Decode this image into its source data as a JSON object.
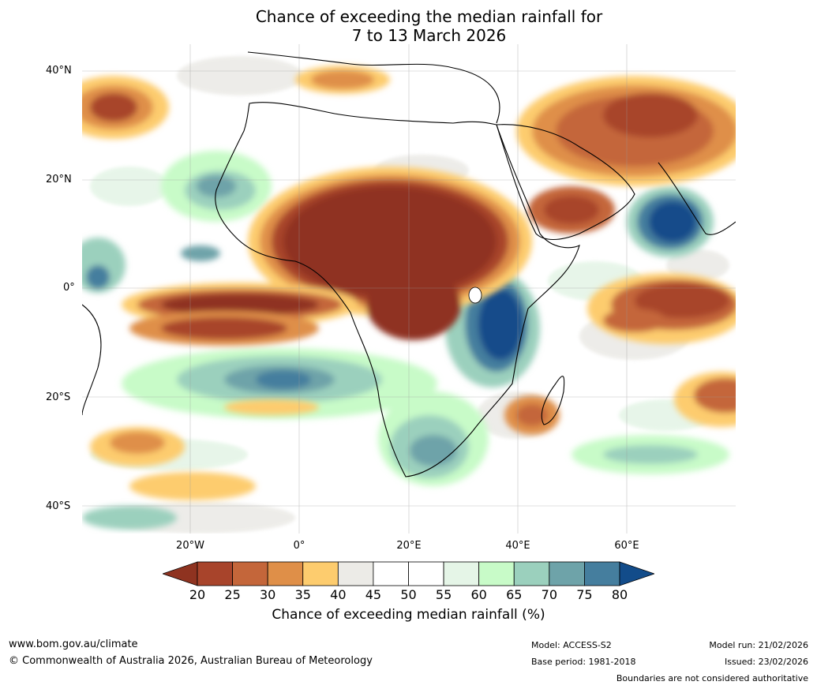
{
  "header": {
    "title_line1": "Chance of exceeding the median rainfall for",
    "title_line2": "7 to 13 March 2026"
  },
  "map": {
    "region": "Africa and surrounding oceans",
    "lat_labels": [
      "40°N",
      "20°N",
      "0°",
      "20°S",
      "40°S"
    ],
    "lon_labels": [
      "20°W",
      "0°",
      "20°E",
      "40°E",
      "60°E"
    ]
  },
  "legend": {
    "ticks": [
      "20",
      "25",
      "30",
      "35",
      "40",
      "45",
      "50",
      "55",
      "60",
      "65",
      "70",
      "75",
      "80"
    ],
    "colors": [
      "#8f3320",
      "#a8442b",
      "#c4663a",
      "#df8f48",
      "#fdcc6e",
      "#ecebe7",
      "#ffffff",
      "#ffffff",
      "#e5f5e7",
      "#c8fbc8",
      "#9bd0bd",
      "#6ea3a9",
      "#457e9e",
      "#124c8a"
    ],
    "title": "Chance of exceeding median rainfall (%)"
  },
  "footer": {
    "website": "www.bom.gov.au/climate",
    "copyright": "© Commonwealth of Australia 2026, Australian Bureau of Meteorology",
    "model": "Model: ACCESS-S2",
    "base_period": "Base period: 1981-2018",
    "model_run": "Model run: 21/02/2026",
    "issued": "Issued: 23/02/2026",
    "disclaimer": "Boundaries are not considered authoritative"
  }
}
